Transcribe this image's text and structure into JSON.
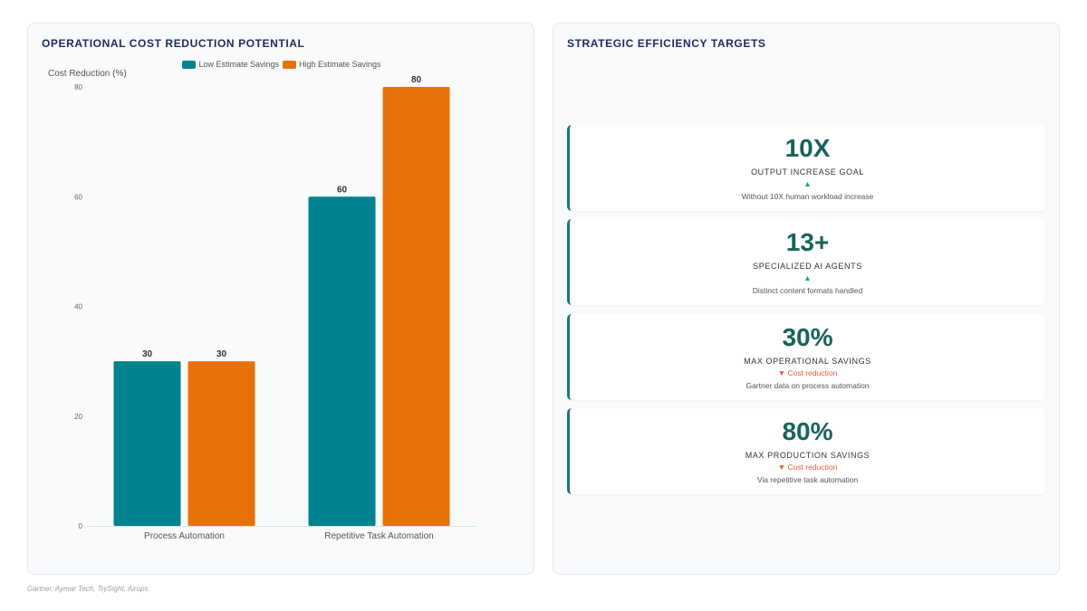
{
  "left_panel": {
    "title": "OPERATIONAL COST REDUCTION POTENTIAL"
  },
  "right_panel": {
    "title": "STRATEGIC EFFICIENCY TARGETS",
    "cards": [
      {
        "value": "10X",
        "label": "OUTPUT INCREASE GOAL",
        "trend_icon": "▲",
        "trend_text": "",
        "trend": "up",
        "desc": "Without 10X human workload increase"
      },
      {
        "value": "13+",
        "label": "SPECIALIZED AI AGENTS",
        "trend_icon": "▲",
        "trend_text": "",
        "trend": "up",
        "desc": "Distinct content formats handled"
      },
      {
        "value": "30%",
        "label": "MAX OPERATIONAL SAVINGS",
        "trend_icon": "▼",
        "trend_text": "Cost reduction",
        "trend": "down",
        "desc": "Gartner data on process automation"
      },
      {
        "value": "80%",
        "label": "MAX PRODUCTION SAVINGS",
        "trend_icon": "▼",
        "trend_text": "Cost reduction",
        "trend": "down",
        "desc": "Via repetitive task automation"
      }
    ]
  },
  "source": "Gartner, Aymar Tech, TrySight, Airops",
  "colors": {
    "teal": "#00838f",
    "orange": "#e8710a",
    "accent": "#1a7a6e"
  },
  "chart_data": {
    "type": "bar",
    "title": "OPERATIONAL COST REDUCTION POTENTIAL",
    "ylabel": "Cost Reduction (%)",
    "xlabel": "",
    "categories": [
      "Process Automation",
      "Repetitive Task Automation"
    ],
    "series": [
      {
        "name": "Low Estimate Savings",
        "values": [
          30,
          60
        ],
        "color": "#00838f"
      },
      {
        "name": "High Estimate Savings",
        "values": [
          30,
          80
        ],
        "color": "#e8710a"
      }
    ],
    "ylim": [
      0,
      80
    ],
    "yticks": [
      0,
      20,
      40,
      60,
      80
    ],
    "grid": false,
    "legend": "top-center",
    "data_labels": true
  }
}
